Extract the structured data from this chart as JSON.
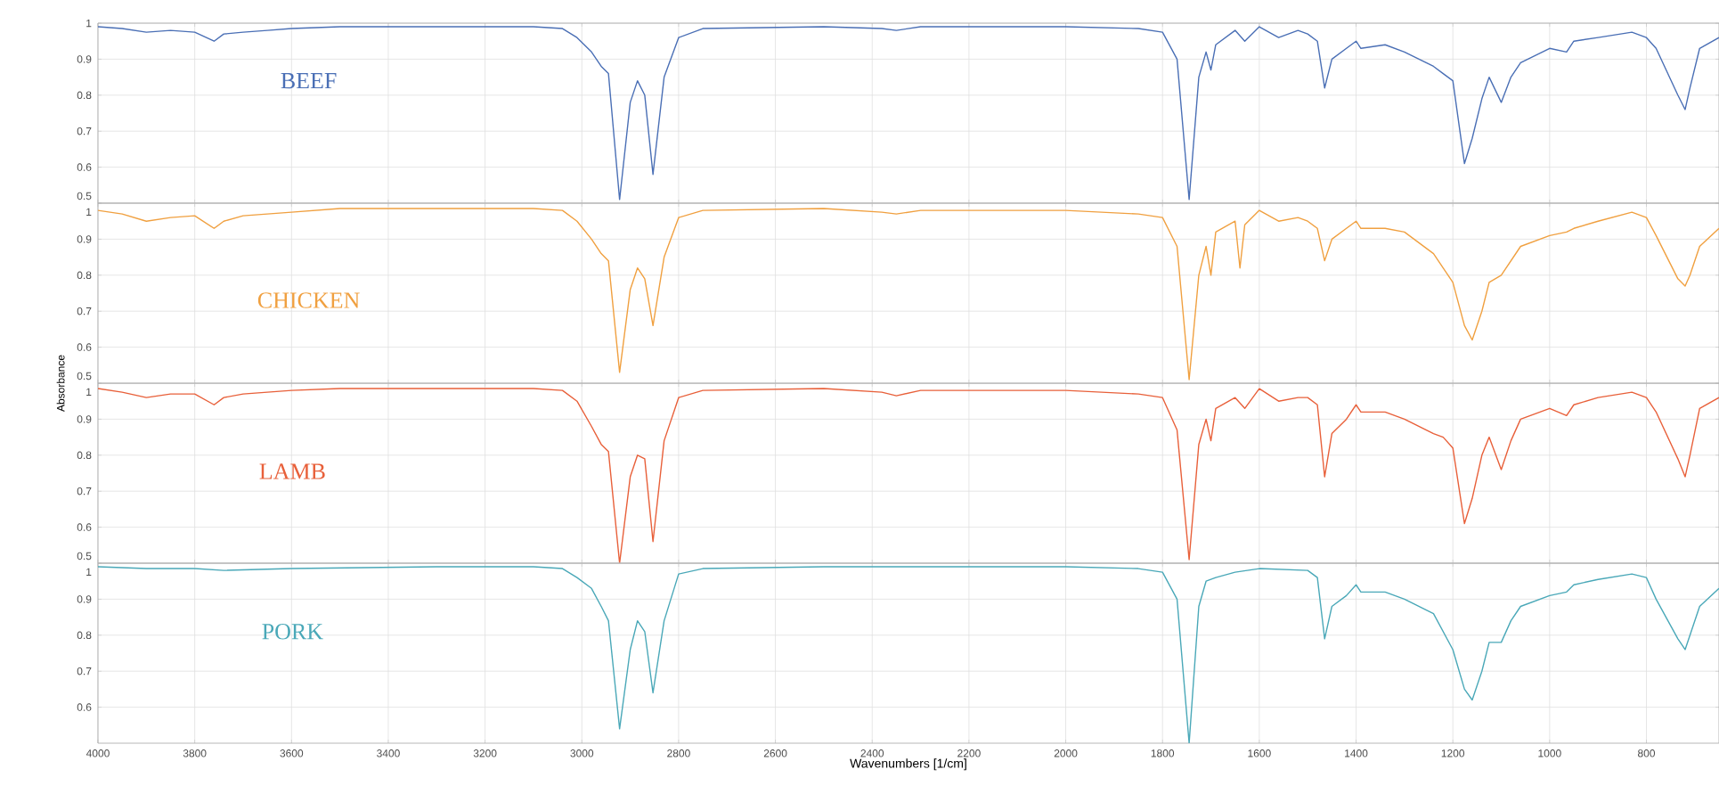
{
  "chart_data": [
    {
      "type": "line",
      "xlim": [
        4000,
        650
      ],
      "xticks": [
        4000,
        3800,
        3600,
        3400,
        3200,
        3000,
        2800,
        2600,
        2400,
        2200,
        2000,
        1800,
        1600,
        1400,
        1200,
        1000,
        800
      ],
      "ylim": [
        0.5,
        1
      ],
      "yticks": [
        0.5,
        0.6,
        0.7,
        0.8,
        0.9,
        1
      ],
      "grid": true,
      "tick_labels": "y",
      "series": [
        {
          "name": "BEEF",
          "color": "#4a6fb5",
          "x": [
            4000,
            3950,
            3900,
            3850,
            3800,
            3760,
            3740,
            3700,
            3650,
            3600,
            3500,
            3300,
            3100,
            3040,
            3010,
            2980,
            2960,
            2945,
            2922,
            2900,
            2885,
            2870,
            2853,
            2830,
            2800,
            2750,
            2500,
            2380,
            2350,
            2300,
            2000,
            1850,
            1800,
            1770,
            1745,
            1725,
            1710,
            1700,
            1690,
            1650,
            1630,
            1600,
            1560,
            1520,
            1500,
            1480,
            1465,
            1450,
            1420,
            1400,
            1390,
            1340,
            1300,
            1240,
            1220,
            1200,
            1176,
            1160,
            1140,
            1125,
            1100,
            1080,
            1060,
            1000,
            965,
            950,
            900,
            830,
            800,
            780,
            735,
            720,
            710,
            690,
            650
          ],
          "values": [
            0.99,
            0.985,
            0.975,
            0.98,
            0.975,
            0.95,
            0.97,
            0.975,
            0.98,
            0.985,
            0.99,
            0.99,
            0.99,
            0.985,
            0.96,
            0.92,
            0.88,
            0.86,
            0.51,
            0.78,
            0.84,
            0.8,
            0.58,
            0.85,
            0.96,
            0.985,
            0.99,
            0.985,
            0.98,
            0.99,
            0.99,
            0.985,
            0.975,
            0.9,
            0.51,
            0.85,
            0.92,
            0.87,
            0.94,
            0.98,
            0.95,
            0.99,
            0.96,
            0.98,
            0.97,
            0.95,
            0.82,
            0.9,
            0.93,
            0.95,
            0.93,
            0.94,
            0.92,
            0.88,
            0.86,
            0.84,
            0.61,
            0.68,
            0.79,
            0.85,
            0.78,
            0.85,
            0.89,
            0.93,
            0.92,
            0.95,
            0.96,
            0.975,
            0.96,
            0.93,
            0.8,
            0.76,
            0.82,
            0.93,
            0.96
          ]
        }
      ]
    },
    {
      "type": "line",
      "xlim": [
        4000,
        650
      ],
      "xticks": [
        4000,
        3800,
        3600,
        3400,
        3200,
        3000,
        2800,
        2600,
        2400,
        2200,
        2000,
        1800,
        1600,
        1400,
        1200,
        1000,
        800
      ],
      "ylim": [
        0.5,
        1
      ],
      "yticks": [
        0.5,
        0.6,
        0.7,
        0.8,
        0.9,
        1
      ],
      "grid": true,
      "tick_labels": "y",
      "ylabel": "Absorbance",
      "series": [
        {
          "name": "CHICKEN",
          "color": "#f0a040",
          "x": [
            4000,
            3950,
            3900,
            3850,
            3800,
            3760,
            3740,
            3700,
            3650,
            3600,
            3500,
            3300,
            3100,
            3040,
            3010,
            2980,
            2960,
            2945,
            2922,
            2900,
            2885,
            2870,
            2853,
            2830,
            2800,
            2750,
            2500,
            2380,
            2350,
            2300,
            2000,
            1850,
            1800,
            1770,
            1745,
            1725,
            1710,
            1700,
            1690,
            1650,
            1640,
            1630,
            1600,
            1560,
            1520,
            1500,
            1480,
            1465,
            1450,
            1420,
            1400,
            1390,
            1340,
            1300,
            1240,
            1200,
            1176,
            1160,
            1140,
            1125,
            1100,
            1080,
            1060,
            1000,
            965,
            950,
            900,
            830,
            800,
            780,
            735,
            720,
            710,
            690,
            650
          ],
          "values": [
            0.98,
            0.97,
            0.95,
            0.96,
            0.965,
            0.93,
            0.95,
            0.965,
            0.97,
            0.975,
            0.985,
            0.985,
            0.985,
            0.98,
            0.95,
            0.9,
            0.86,
            0.84,
            0.53,
            0.76,
            0.82,
            0.79,
            0.66,
            0.85,
            0.96,
            0.98,
            0.985,
            0.975,
            0.97,
            0.98,
            0.98,
            0.97,
            0.96,
            0.88,
            0.51,
            0.8,
            0.88,
            0.8,
            0.92,
            0.95,
            0.82,
            0.94,
            0.98,
            0.95,
            0.96,
            0.95,
            0.93,
            0.84,
            0.9,
            0.93,
            0.95,
            0.93,
            0.93,
            0.92,
            0.86,
            0.78,
            0.66,
            0.62,
            0.7,
            0.78,
            0.8,
            0.84,
            0.88,
            0.91,
            0.92,
            0.93,
            0.95,
            0.975,
            0.96,
            0.91,
            0.79,
            0.77,
            0.8,
            0.88,
            0.93
          ]
        }
      ]
    },
    {
      "type": "line",
      "xlim": [
        4000,
        650
      ],
      "xticks": [
        4000,
        3800,
        3600,
        3400,
        3200,
        3000,
        2800,
        2600,
        2400,
        2200,
        2000,
        1800,
        1600,
        1400,
        1200,
        1000,
        800
      ],
      "ylim": [
        0.5,
        1
      ],
      "yticks": [
        0.5,
        0.6,
        0.7,
        0.8,
        0.9,
        1
      ],
      "grid": true,
      "tick_labels": "y",
      "series": [
        {
          "name": "LAMB",
          "color": "#e8603a",
          "x": [
            4000,
            3950,
            3900,
            3850,
            3800,
            3760,
            3740,
            3700,
            3650,
            3600,
            3500,
            3300,
            3100,
            3040,
            3010,
            2980,
            2960,
            2945,
            2922,
            2900,
            2885,
            2870,
            2853,
            2830,
            2800,
            2750,
            2500,
            2380,
            2350,
            2300,
            2000,
            1850,
            1800,
            1770,
            1745,
            1725,
            1710,
            1700,
            1690,
            1650,
            1630,
            1600,
            1560,
            1520,
            1500,
            1480,
            1465,
            1450,
            1420,
            1400,
            1390,
            1340,
            1300,
            1240,
            1220,
            1200,
            1176,
            1160,
            1140,
            1125,
            1100,
            1080,
            1060,
            1000,
            965,
            950,
            900,
            830,
            800,
            780,
            735,
            720,
            710,
            690,
            650
          ],
          "values": [
            0.985,
            0.975,
            0.96,
            0.97,
            0.97,
            0.94,
            0.96,
            0.97,
            0.975,
            0.98,
            0.985,
            0.985,
            0.985,
            0.98,
            0.95,
            0.88,
            0.83,
            0.81,
            0.5,
            0.74,
            0.8,
            0.79,
            0.56,
            0.84,
            0.96,
            0.98,
            0.985,
            0.975,
            0.965,
            0.98,
            0.98,
            0.97,
            0.96,
            0.87,
            0.51,
            0.83,
            0.9,
            0.84,
            0.93,
            0.96,
            0.93,
            0.985,
            0.95,
            0.96,
            0.96,
            0.94,
            0.74,
            0.86,
            0.9,
            0.94,
            0.92,
            0.92,
            0.9,
            0.86,
            0.85,
            0.82,
            0.61,
            0.68,
            0.8,
            0.85,
            0.76,
            0.84,
            0.9,
            0.93,
            0.91,
            0.94,
            0.96,
            0.975,
            0.96,
            0.92,
            0.79,
            0.74,
            0.8,
            0.93,
            0.96
          ]
        }
      ]
    },
    {
      "type": "line",
      "xlim": [
        4000,
        650
      ],
      "xticks": [
        4000,
        3800,
        3600,
        3400,
        3200,
        3000,
        2800,
        2600,
        2400,
        2200,
        2000,
        1800,
        1600,
        1400,
        1200,
        1000,
        800
      ],
      "ylim": [
        0.5,
        1
      ],
      "yticks": [
        0.6,
        0.7,
        0.8,
        0.9,
        1
      ],
      "grid": true,
      "xlabel": "Wavenumbers [1/cm]",
      "series": [
        {
          "name": "PORK",
          "color": "#4aa8b8",
          "x": [
            4000,
            3900,
            3800,
            3740,
            3600,
            3300,
            3100,
            3040,
            3010,
            2980,
            2960,
            2945,
            2922,
            2900,
            2885,
            2870,
            2853,
            2830,
            2800,
            2750,
            2500,
            2300,
            2000,
            1850,
            1800,
            1770,
            1745,
            1725,
            1710,
            1690,
            1650,
            1600,
            1500,
            1480,
            1465,
            1450,
            1420,
            1400,
            1390,
            1340,
            1300,
            1240,
            1200,
            1176,
            1160,
            1140,
            1125,
            1100,
            1080,
            1060,
            1000,
            965,
            950,
            900,
            830,
            800,
            780,
            735,
            720,
            710,
            690,
            650
          ],
          "values": [
            0.99,
            0.985,
            0.985,
            0.98,
            0.985,
            0.99,
            0.99,
            0.985,
            0.96,
            0.93,
            0.88,
            0.84,
            0.54,
            0.76,
            0.84,
            0.81,
            0.64,
            0.84,
            0.97,
            0.985,
            0.99,
            0.99,
            0.99,
            0.985,
            0.975,
            0.9,
            0.5,
            0.88,
            0.95,
            0.96,
            0.975,
            0.985,
            0.98,
            0.96,
            0.79,
            0.88,
            0.91,
            0.94,
            0.92,
            0.92,
            0.9,
            0.86,
            0.76,
            0.65,
            0.62,
            0.7,
            0.78,
            0.78,
            0.84,
            0.88,
            0.91,
            0.92,
            0.94,
            0.955,
            0.97,
            0.96,
            0.9,
            0.79,
            0.76,
            0.8,
            0.88,
            0.93
          ]
        }
      ]
    }
  ]
}
